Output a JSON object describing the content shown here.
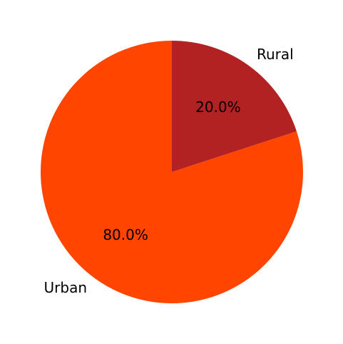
{
  "chart_data": {
    "type": "pie",
    "categories": [
      "Rural",
      "Urban"
    ],
    "values": [
      20.0,
      80.0
    ],
    "percent_labels": [
      "20.0%",
      "80.0%"
    ],
    "colors": [
      "#b22222",
      "#ff4500"
    ],
    "start_angle_deg": 90,
    "direction": "clockwise",
    "legend": "none"
  }
}
